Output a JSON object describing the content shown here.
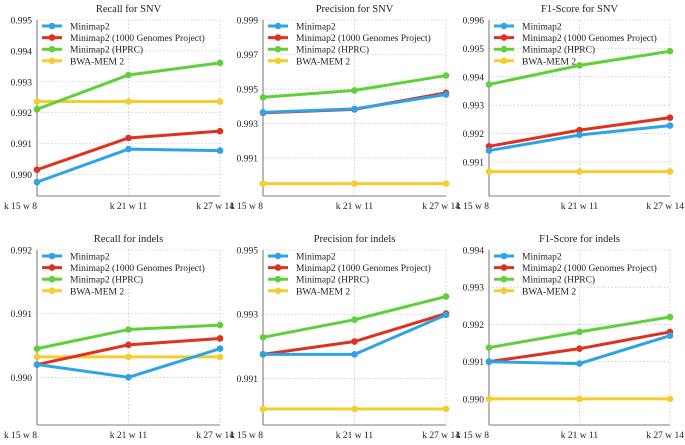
{
  "colors": {
    "minimap2": "#2ea3e6",
    "minimap2_1kg": "#e0301e",
    "minimap2_hprc": "#5fd03a",
    "bwa_mem2": "#f5cd2f",
    "grid": "#b5b5b5",
    "axis": "#555555"
  },
  "chart_data": [
    {
      "type": "line",
      "title": "Recall for SNV",
      "categories": [
        "k 15 w 8",
        "k 21 w 11",
        "k 27 w 14"
      ],
      "yticks": [
        "0.990",
        "0.991",
        "0.992",
        "0.993",
        "0.994",
        "0.995"
      ],
      "ylim": [
        0.9893,
        0.995
      ],
      "series": [
        {
          "name": "Minimap2",
          "values": [
            0.98975,
            0.99082,
            0.99077
          ]
        },
        {
          "name": "Minimap2 (1000 Genomes Project)",
          "values": [
            0.99015,
            0.99118,
            0.9914
          ]
        },
        {
          "name": "Minimap2 (HPRC)",
          "values": [
            0.99211,
            0.99322,
            0.99361
          ]
        },
        {
          "name": "BWA-MEM 2",
          "values": [
            0.99236,
            0.99236,
            0.99236
          ]
        }
      ]
    },
    {
      "type": "line",
      "title": "Precision for SNV",
      "categories": [
        "k 15 w 8",
        "k 21 w 11",
        "k 27 w 14"
      ],
      "yticks": [
        "0.991",
        "0.993",
        "0.995",
        "0.997",
        "0.999"
      ],
      "ylim": [
        0.9888,
        0.999
      ],
      "series": [
        {
          "name": "Minimap2",
          "values": [
            0.99365,
            0.99385,
            0.99468
          ]
        },
        {
          "name": "Minimap2 (1000 Genomes Project)",
          "values": [
            0.99362,
            0.99382,
            0.99478
          ]
        },
        {
          "name": "Minimap2 (HPRC)",
          "values": [
            0.99452,
            0.99492,
            0.99578
          ]
        },
        {
          "name": "BWA-MEM 2",
          "values": [
            0.98952,
            0.98952,
            0.98952
          ]
        }
      ]
    },
    {
      "type": "line",
      "title": "F1-Score for SNV",
      "categories": [
        "k 15 w 8",
        "k 21 w 11",
        "k 27 w 14"
      ],
      "yticks": [
        "0.991",
        "0.992",
        "0.993",
        "0.994",
        "0.995",
        "0.996"
      ],
      "ylim": [
        0.9898,
        0.996
      ],
      "series": [
        {
          "name": "Minimap2",
          "values": [
            0.9914,
            0.99195,
            0.99228
          ]
        },
        {
          "name": "Minimap2 (1000 Genomes Project)",
          "values": [
            0.99155,
            0.99212,
            0.99256
          ]
        },
        {
          "name": "Minimap2 (HPRC)",
          "values": [
            0.99373,
            0.9944,
            0.9949
          ]
        },
        {
          "name": "BWA-MEM 2",
          "values": [
            0.99066,
            0.99066,
            0.99066
          ]
        }
      ]
    },
    {
      "type": "line",
      "title": "Recall for indels",
      "categories": [
        "k 15 w 8",
        "k 21 w 11",
        "k 27 w 14"
      ],
      "yticks": [
        "0.990",
        "0.991",
        "0.992"
      ],
      "ylim": [
        0.98925,
        0.992
      ],
      "series": [
        {
          "name": "Minimap2",
          "values": [
            0.9902,
            0.99,
            0.99045
          ]
        },
        {
          "name": "Minimap2 (1000 Genomes Project)",
          "values": [
            0.9902,
            0.99051,
            0.99061
          ]
        },
        {
          "name": "Minimap2 (HPRC)",
          "values": [
            0.99045,
            0.99075,
            0.99082
          ]
        },
        {
          "name": "BWA-MEM 2",
          "values": [
            0.99032,
            0.99032,
            0.99032
          ]
        }
      ]
    },
    {
      "type": "line",
      "title": "Precision for indels",
      "categories": [
        "k 15 w 8",
        "k 21 w 11",
        "k 27 w 14"
      ],
      "yticks": [
        "0.991",
        "0.993",
        "0.995"
      ],
      "ylim": [
        0.98955,
        0.995
      ],
      "series": [
        {
          "name": "Minimap2",
          "values": [
            0.99175,
            0.99175,
            0.99298
          ]
        },
        {
          "name": "Minimap2 (1000 Genomes Project)",
          "values": [
            0.99175,
            0.99215,
            0.99302
          ]
        },
        {
          "name": "Minimap2 (HPRC)",
          "values": [
            0.99228,
            0.99283,
            0.99355
          ]
        },
        {
          "name": "BWA-MEM 2",
          "values": [
            0.99005,
            0.99005,
            0.99005
          ]
        }
      ]
    },
    {
      "type": "line",
      "title": "F1-Score for indels",
      "categories": [
        "k 15 w 8",
        "k 21 w 11",
        "k 27 w 14"
      ],
      "yticks": [
        "0.990",
        "0.991",
        "0.992",
        "0.993",
        "0.994"
      ],
      "ylim": [
        0.9893,
        0.994
      ],
      "series": [
        {
          "name": "Minimap2",
          "values": [
            0.991,
            0.99095,
            0.9917
          ]
        },
        {
          "name": "Minimap2 (1000 Genomes Project)",
          "values": [
            0.991,
            0.99135,
            0.9918
          ]
        },
        {
          "name": "Minimap2 (HPRC)",
          "values": [
            0.99138,
            0.9918,
            0.9922
          ]
        },
        {
          "name": "BWA-MEM 2",
          "values": [
            0.99,
            0.99,
            0.99
          ]
        }
      ]
    }
  ]
}
